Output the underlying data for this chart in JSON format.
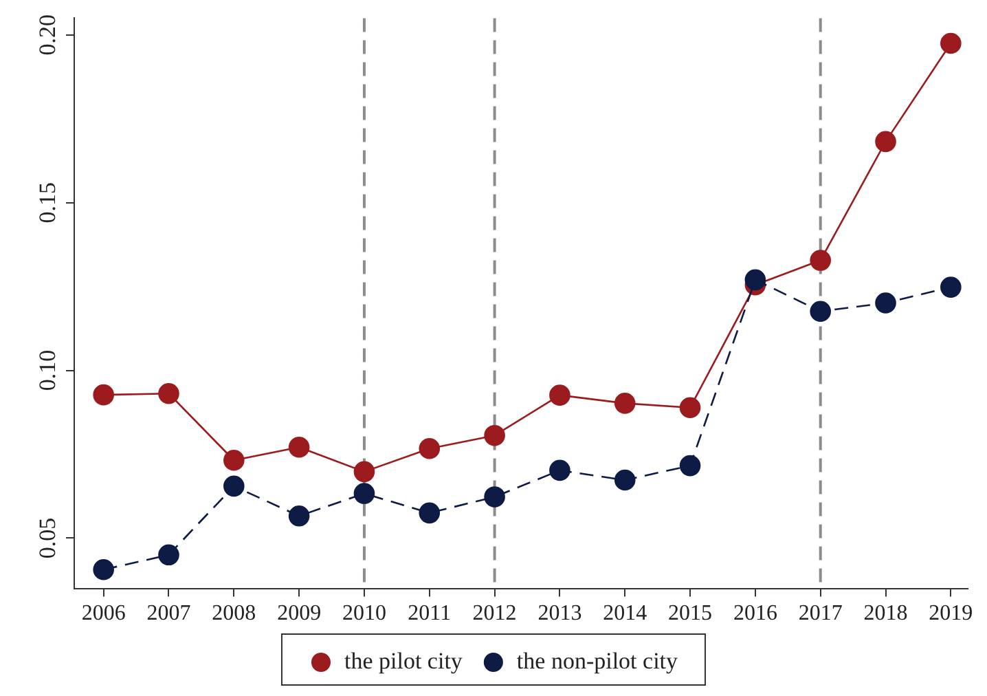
{
  "chart_data": {
    "type": "line",
    "x": [
      2006,
      2007,
      2008,
      2009,
      2010,
      2011,
      2012,
      2013,
      2014,
      2015,
      2016,
      2017,
      2018,
      2019
    ],
    "series": [
      {
        "name": "the pilot city",
        "color": "#9b1b1e",
        "line_style": "solid",
        "values": [
          0.0927,
          0.0931,
          0.0732,
          0.0771,
          0.0698,
          0.0767,
          0.0806,
          0.0926,
          0.0902,
          0.0889,
          0.1255,
          0.1328,
          0.1682,
          0.1975
        ]
      },
      {
        "name": "the non-pilot city",
        "color": "#0d1b45",
        "line_style": "dashed",
        "values": [
          0.0406,
          0.045,
          0.0655,
          0.0566,
          0.0633,
          0.0575,
          0.0623,
          0.0702,
          0.0673,
          0.0716,
          0.127,
          0.1176,
          0.1201,
          0.1248
        ]
      }
    ],
    "xlim": [
      2005.55,
      2019.26
    ],
    "xticks": [
      2006,
      2007,
      2008,
      2009,
      2010,
      2011,
      2012,
      2013,
      2014,
      2015,
      2016,
      2017,
      2018,
      2019
    ],
    "ylim": [
      0.035,
      0.205
    ],
    "yticks": [
      {
        "value": 0.05,
        "label": "0.05"
      },
      {
        "value": 0.1,
        "label": "0.10"
      },
      {
        "value": 0.15,
        "label": "0.15"
      },
      {
        "value": 0.2,
        "label": "0.20"
      }
    ],
    "ref_lines": [
      {
        "axis": "x",
        "value": 2010,
        "color": "#8c8c8c",
        "line_style": "dashed"
      },
      {
        "axis": "x",
        "value": 2012,
        "color": "#8c8c8c",
        "line_style": "dashed"
      },
      {
        "axis": "x",
        "value": 2017,
        "color": "#8c8c8c",
        "line_style": "dashed"
      }
    ],
    "marker": "circle",
    "grid": false,
    "legend": "bottom"
  }
}
